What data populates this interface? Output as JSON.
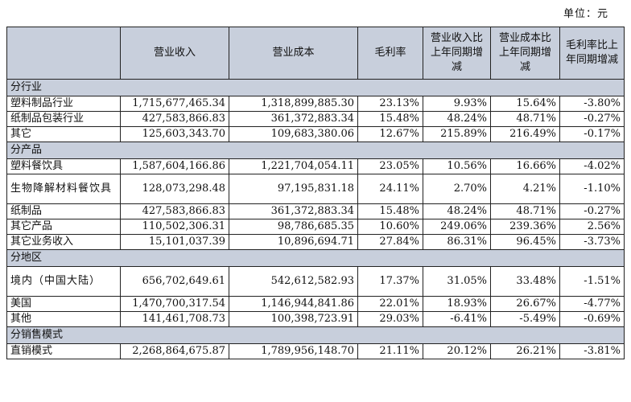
{
  "unit_label": "单位：元",
  "headers": [
    "",
    "营业收入",
    "营业成本",
    "毛利率",
    "营业收入比上年同期增减",
    "营业成本比上年同期增减",
    "毛利率比上年同期增减"
  ],
  "sections": [
    {
      "title": "分行业",
      "rows": [
        {
          "name": "塑料制品行业",
          "revenue": "1,715,677,465.34",
          "cost": "1,318,899,885.30",
          "margin": "23.13%",
          "rev_chg": "9.93%",
          "cost_chg": "15.64%",
          "margin_chg": "-3.80%"
        },
        {
          "name": "纸制品包装行业",
          "revenue": "427,583,866.83",
          "cost": "361,372,883.34",
          "margin": "15.48%",
          "rev_chg": "48.24%",
          "cost_chg": "48.71%",
          "margin_chg": "-0.27%"
        },
        {
          "name": "其它",
          "revenue": "125,603,343.70",
          "cost": "109,683,380.06",
          "margin": "12.67%",
          "rev_chg": "215.89%",
          "cost_chg": "216.49%",
          "margin_chg": "-0.17%"
        }
      ]
    },
    {
      "title": "分产品",
      "rows": [
        {
          "name": "塑料餐饮具",
          "revenue": "1,587,604,166.86",
          "cost": "1,221,704,054.11",
          "margin": "23.05%",
          "rev_chg": "10.56%",
          "cost_chg": "16.66%",
          "margin_chg": "-4.02%"
        },
        {
          "name": "生物降解材料餐饮具",
          "revenue": "128,073,298.48",
          "cost": "97,195,831.18",
          "margin": "24.11%",
          "rev_chg": "2.70%",
          "cost_chg": "4.21%",
          "margin_chg": "-1.10%"
        },
        {
          "name": "纸制品",
          "revenue": "427,583,866.83",
          "cost": "361,372,883.34",
          "margin": "15.48%",
          "rev_chg": "48.24%",
          "cost_chg": "48.71%",
          "margin_chg": "-0.27%"
        },
        {
          "name": "其它产品",
          "revenue": "110,502,306.31",
          "cost": "98,786,685.35",
          "margin": "10.60%",
          "rev_chg": "249.06%",
          "cost_chg": "239.36%",
          "margin_chg": "2.56%"
        },
        {
          "name": "其它业务收入",
          "revenue": "15,101,037.39",
          "cost": "10,896,694.71",
          "margin": "27.84%",
          "rev_chg": "86.31%",
          "cost_chg": "96.45%",
          "margin_chg": "-3.73%"
        }
      ]
    },
    {
      "title": "分地区",
      "rows": [
        {
          "name": "境内（中国大陆）",
          "revenue": "656,702,649.61",
          "cost": "542,612,582.93",
          "margin": "17.37%",
          "rev_chg": "31.05%",
          "cost_chg": "33.48%",
          "margin_chg": "-1.51%"
        },
        {
          "name": "美国",
          "revenue": "1,470,700,317.54",
          "cost": "1,146,944,841.86",
          "margin": "22.01%",
          "rev_chg": "18.93%",
          "cost_chg": "26.67%",
          "margin_chg": "-4.77%"
        },
        {
          "name": "其他",
          "revenue": "141,461,708.73",
          "cost": "100,398,723.91",
          "margin": "29.03%",
          "rev_chg": "-6.41%",
          "cost_chg": "-5.49%",
          "margin_chg": "-0.69%"
        }
      ]
    },
    {
      "title": "分销售模式",
      "rows": [
        {
          "name": "直销模式",
          "revenue": "2,268,864,675.87",
          "cost": "1,789,956,148.70",
          "margin": "21.11%",
          "rev_chg": "20.12%",
          "cost_chg": "26.21%",
          "margin_chg": "-3.81%"
        }
      ]
    }
  ]
}
